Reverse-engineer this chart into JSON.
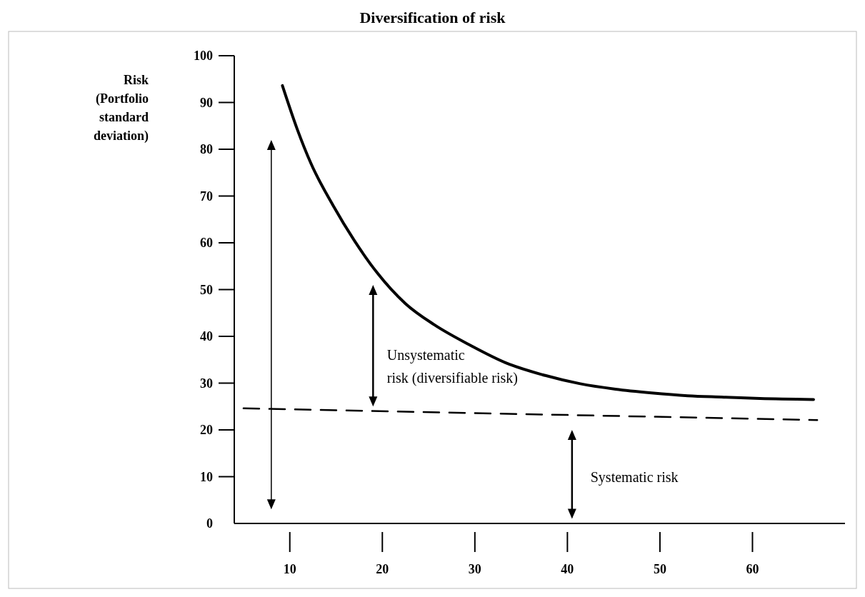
{
  "chart_data": {
    "type": "line",
    "title": "Diversification of risk",
    "ylabel": "Risk (Portfolio standard deviation)",
    "annotations": [
      "Unsystematic risk (diversifiable risk)",
      "Systematic risk"
    ],
    "xlim": [
      4,
      70
    ],
    "xticks": [
      10,
      20,
      30,
      40,
      50,
      60
    ],
    "ylim": [
      0,
      100
    ],
    "yticks": [
      0,
      10,
      20,
      30,
      40,
      50,
      60,
      70,
      80,
      90,
      100
    ],
    "grid": false,
    "marker": "none",
    "series": [
      {
        "color": "#000000",
        "line_style": "solid",
        "x": [
          9.2,
          10.8,
          12.3,
          14.7,
          17.0,
          19.4,
          22.5,
          25.6,
          29.5,
          33.4,
          37.3,
          41.3,
          45.2,
          49.1,
          53.0,
          56.9,
          60.8,
          66.6
        ],
        "values": [
          93.6,
          84.3,
          76.9,
          67.9,
          60.4,
          53.7,
          47.0,
          42.5,
          38.1,
          34.3,
          31.8,
          29.9,
          28.7,
          27.9,
          27.3,
          27.0,
          26.7,
          26.5
        ]
      },
      {
        "color": "#000000",
        "line_style": "dashed",
        "x": [
          5,
          67
        ],
        "values": [
          24.6,
          22.1
        ]
      }
    ]
  }
}
